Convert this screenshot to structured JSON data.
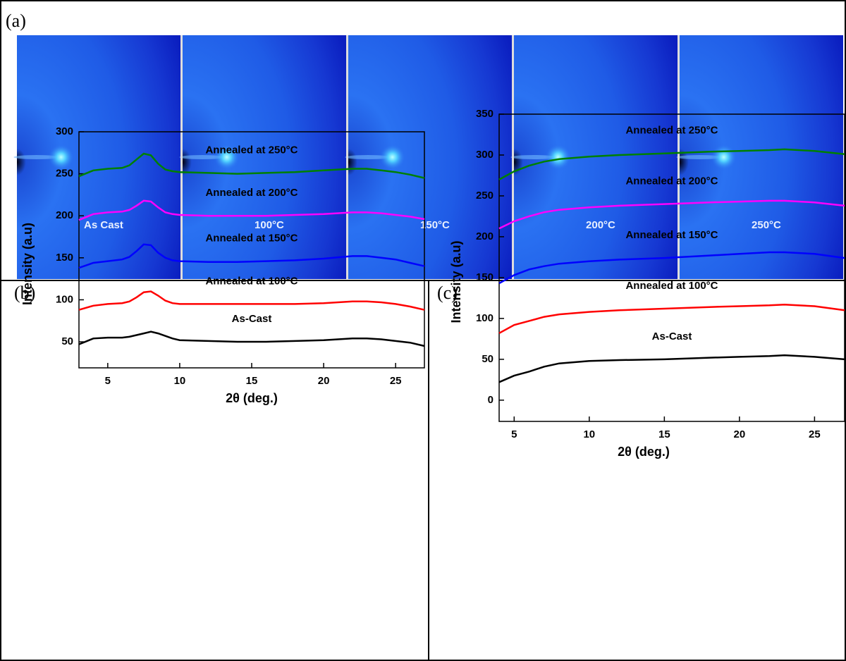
{
  "panel_a": {
    "label": "(a)",
    "images": [
      "As Cast",
      "100°C",
      "150°C",
      "200°C",
      "250°C"
    ]
  },
  "chart_data": [
    {
      "type": "line",
      "panel_label": "(b)",
      "x_label": "2θ (deg.)",
      "y_label": "Intensity (a.u)",
      "xlim": [
        3,
        27
      ],
      "ylim": [
        19,
        300
      ],
      "xticks": [
        5,
        10,
        15,
        20,
        25
      ],
      "yticks": [
        50,
        100,
        150,
        200,
        250,
        300
      ],
      "x": [
        3,
        4,
        5,
        6,
        6.5,
        7,
        7.5,
        8,
        8.5,
        9,
        9.5,
        10,
        12,
        14,
        16,
        18,
        20,
        22,
        23,
        24,
        25,
        26,
        27
      ],
      "series": [
        {
          "name": "As-Cast",
          "color": "#000000",
          "values": [
            47,
            54,
            55,
            55,
            56,
            58,
            60,
            62,
            60,
            57,
            54,
            52,
            51,
            50,
            50,
            51,
            52,
            54,
            54,
            53,
            51,
            49,
            45
          ]
        },
        {
          "name": "Annealed at 100°C",
          "color": "#ff0000",
          "values": [
            88,
            93,
            95,
            96,
            98,
            103,
            109,
            110,
            105,
            99,
            96,
            95,
            95,
            95,
            95,
            95,
            96,
            98,
            98,
            97,
            95,
            92,
            88
          ]
        },
        {
          "name": "Annealed at 150°C",
          "color": "#0000ff",
          "values": [
            138,
            144,
            146,
            148,
            151,
            158,
            166,
            165,
            156,
            150,
            147,
            146,
            145,
            145,
            146,
            147,
            149,
            152,
            152,
            150,
            148,
            144,
            140
          ]
        },
        {
          "name": "Annealed at 200°C",
          "color": "#ff00ff",
          "values": [
            195,
            202,
            204,
            205,
            207,
            212,
            218,
            217,
            210,
            204,
            202,
            201,
            200,
            200,
            200,
            201,
            202,
            204,
            204,
            203,
            201,
            199,
            196
          ]
        },
        {
          "name": "Annealed at 250°C",
          "color": "#008000",
          "values": [
            247,
            254,
            256,
            257,
            260,
            267,
            274,
            272,
            262,
            255,
            253,
            252,
            251,
            250,
            251,
            252,
            254,
            256,
            256,
            254,
            252,
            249,
            245
          ]
        }
      ]
    },
    {
      "type": "line",
      "panel_label": "(c)",
      "x_label": "2θ (deg.)",
      "y_label": "Intensity (a.u)",
      "xlim": [
        4,
        27
      ],
      "ylim": [
        -26,
        350
      ],
      "xticks": [
        5,
        10,
        15,
        20,
        25
      ],
      "yticks": [
        0,
        50,
        100,
        150,
        200,
        250,
        300,
        350
      ],
      "x": [
        4,
        5,
        6,
        7,
        8,
        10,
        12,
        15,
        18,
        20,
        22,
        23,
        25,
        27
      ],
      "series": [
        {
          "name": "As-Cast",
          "color": "#000000",
          "values": [
            22,
            30,
            35,
            41,
            45,
            48,
            49,
            50,
            52,
            53,
            54,
            55,
            53,
            50
          ]
        },
        {
          "name": "Annealed at 100°C",
          "color": "#ff0000",
          "values": [
            82,
            92,
            97,
            102,
            105,
            108,
            110,
            112,
            114,
            115,
            116,
            117,
            115,
            110
          ]
        },
        {
          "name": "Annealed at 150°C",
          "color": "#0000ff",
          "values": [
            143,
            153,
            160,
            164,
            167,
            170,
            172,
            174,
            177,
            179,
            181,
            181,
            179,
            174
          ]
        },
        {
          "name": "Annealed at 200°C",
          "color": "#ff00ff",
          "values": [
            210,
            219,
            225,
            230,
            233,
            236,
            238,
            240,
            242,
            243,
            244,
            244,
            242,
            238
          ]
        },
        {
          "name": "Annealed at 250°C",
          "color": "#008000",
          "values": [
            270,
            280,
            287,
            292,
            295,
            298,
            300,
            302,
            304,
            305,
            306,
            307,
            305,
            301
          ]
        }
      ]
    }
  ]
}
